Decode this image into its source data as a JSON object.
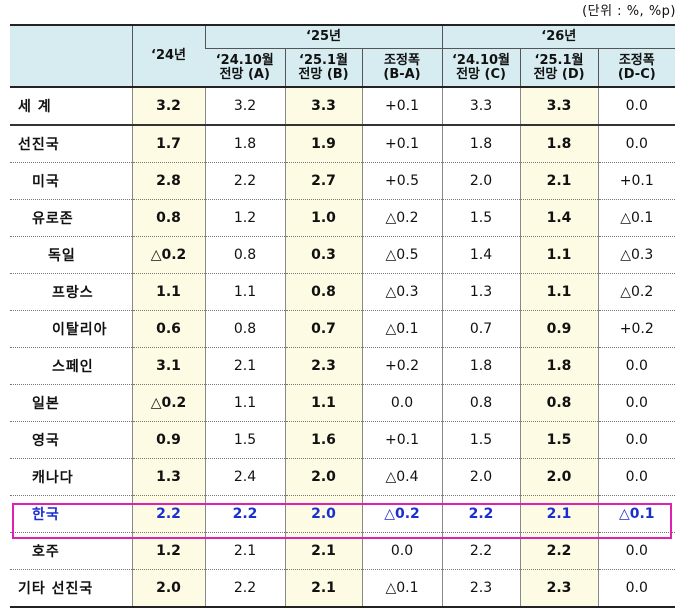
{
  "unit_note": "(단위 : %, %p)",
  "header": {
    "col24": "‘24년",
    "group25": "‘25년",
    "group26": "‘26년",
    "sub": [
      [
        "‘24.10월",
        "전망 (A)"
      ],
      [
        "‘25.1월",
        "전망 (B)"
      ],
      [
        "조정폭",
        "(B-A)"
      ],
      [
        "‘24.10월",
        "전망 (C)"
      ],
      [
        "‘25.1월",
        "전망 (D)"
      ],
      [
        "조정폭",
        "(D-C)"
      ]
    ]
  },
  "rows": [
    {
      "name": "세  계",
      "v": [
        "3.2",
        "3.2",
        "3.3",
        "+0.1",
        "3.3",
        "3.3",
        "0.0"
      ]
    },
    {
      "name": "선진국",
      "v": [
        "1.7",
        "1.8",
        "1.9",
        "+0.1",
        "1.8",
        "1.8",
        "0.0"
      ]
    },
    {
      "name": "미국",
      "v": [
        "2.8",
        "2.2",
        "2.7",
        "+0.5",
        "2.0",
        "2.1",
        "+0.1"
      ]
    },
    {
      "name": "유로존",
      "v": [
        "0.8",
        "1.2",
        "1.0",
        "△0.2",
        "1.5",
        "1.4",
        "△0.1"
      ]
    },
    {
      "name": "독일",
      "v": [
        "△0.2",
        "0.8",
        "0.3",
        "△0.5",
        "1.4",
        "1.1",
        "△0.3"
      ]
    },
    {
      "name": "프랑스",
      "v": [
        "1.1",
        "1.1",
        "0.8",
        "△0.3",
        "1.3",
        "1.1",
        "△0.2"
      ]
    },
    {
      "name": "이탈리아",
      "v": [
        "0.6",
        "0.8",
        "0.7",
        "△0.1",
        "0.7",
        "0.9",
        "+0.2"
      ]
    },
    {
      "name": "스페인",
      "v": [
        "3.1",
        "2.1",
        "2.3",
        "+0.2",
        "1.8",
        "1.8",
        "0.0"
      ]
    },
    {
      "name": "일본",
      "v": [
        "△0.2",
        "1.1",
        "1.1",
        "0.0",
        "0.8",
        "0.8",
        "0.0"
      ]
    },
    {
      "name": "영국",
      "v": [
        "0.9",
        "1.5",
        "1.6",
        "+0.1",
        "1.5",
        "1.5",
        "0.0"
      ]
    },
    {
      "name": "캐나다",
      "v": [
        "1.3",
        "2.4",
        "2.0",
        "△0.4",
        "2.0",
        "2.0",
        "0.0"
      ]
    },
    {
      "name": "한국",
      "v": [
        "2.2",
        "2.2",
        "2.0",
        "△0.2",
        "2.2",
        "2.1",
        "△0.1"
      ]
    },
    {
      "name": "호주",
      "v": [
        "1.2",
        "2.1",
        "2.1",
        "0.0",
        "2.2",
        "2.2",
        "0.0"
      ]
    },
    {
      "name": "기타 선진국",
      "v": [
        "2.0",
        "2.2",
        "2.1",
        "△0.1",
        "2.3",
        "2.3",
        "0.0"
      ]
    }
  ]
}
